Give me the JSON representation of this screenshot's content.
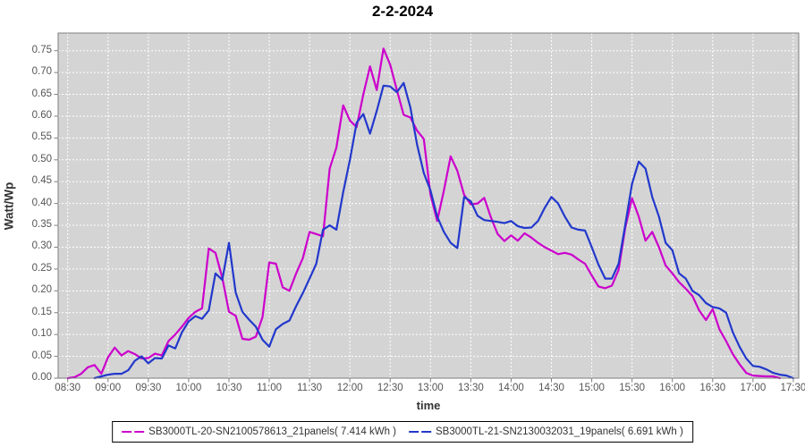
{
  "title": "2-2-2024",
  "y_axis": {
    "label": "Watt/Wp",
    "ticks": [
      "0.00",
      "0.05",
      "0.10",
      "0.15",
      "0.20",
      "0.25",
      "0.30",
      "0.35",
      "0.40",
      "0.45",
      "0.50",
      "0.55",
      "0.60",
      "0.65",
      "0.70",
      "0.75"
    ]
  },
  "x_axis": {
    "label": "time",
    "ticks": [
      "08:30",
      "09:00",
      "09:30",
      "10:00",
      "10:30",
      "11:00",
      "11:30",
      "12:00",
      "12:30",
      "13:00",
      "13:30",
      "14:00",
      "14:30",
      "15:00",
      "15:30",
      "16:00",
      "16:30",
      "17:00",
      "17:30"
    ]
  },
  "legend": {
    "items": [
      {
        "label": "SB3000TL-20-SN2100578613_21panels( 7.414 kWh )",
        "color": "#cc00cc"
      },
      {
        "label": "SB3000TL-21-SN2130032031_19panels( 6.691 kWh )",
        "color": "#2238cc"
      }
    ]
  },
  "colors": {
    "plot_background": "#d4d4d4",
    "grid": "#ffffff",
    "plot_border": "#7e7e7e",
    "tick_mark": "#808080",
    "series1": "#cc00cc",
    "series2": "#2238cc"
  },
  "chart_data": {
    "type": "line",
    "title": "2-2-2024",
    "xlabel": "time",
    "ylabel": "Watt/Wp",
    "ylim": [
      0,
      0.79
    ],
    "y_tick_step": 0.05,
    "x_tick_interval_minutes": 30,
    "grid": true,
    "legend_position": "bottom",
    "x": [
      "08:30",
      "08:35",
      "08:40",
      "08:45",
      "08:50",
      "08:55",
      "09:00",
      "09:05",
      "09:10",
      "09:15",
      "09:20",
      "09:25",
      "09:30",
      "09:35",
      "09:40",
      "09:45",
      "09:50",
      "09:55",
      "10:00",
      "10:05",
      "10:10",
      "10:15",
      "10:20",
      "10:25",
      "10:30",
      "10:35",
      "10:40",
      "10:45",
      "10:50",
      "10:55",
      "11:00",
      "11:05",
      "11:10",
      "11:15",
      "11:20",
      "11:25",
      "11:30",
      "11:35",
      "11:40",
      "11:45",
      "11:50",
      "11:55",
      "12:00",
      "12:05",
      "12:10",
      "12:15",
      "12:20",
      "12:25",
      "12:30",
      "12:35",
      "12:40",
      "12:45",
      "12:50",
      "12:55",
      "13:00",
      "13:05",
      "13:10",
      "13:15",
      "13:20",
      "13:25",
      "13:30",
      "13:35",
      "13:40",
      "13:45",
      "13:50",
      "13:55",
      "14:00",
      "14:05",
      "14:10",
      "14:15",
      "14:20",
      "14:25",
      "14:30",
      "14:35",
      "14:40",
      "14:45",
      "14:50",
      "14:55",
      "15:00",
      "15:05",
      "15:10",
      "15:15",
      "15:20",
      "15:25",
      "15:30",
      "15:35",
      "15:40",
      "15:45",
      "15:50",
      "15:55",
      "16:00",
      "16:05",
      "16:10",
      "16:15",
      "16:20",
      "16:25",
      "16:30",
      "16:35",
      "16:40",
      "16:45",
      "16:50",
      "16:55",
      "17:00",
      "17:05",
      "17:10",
      "17:15",
      "17:20",
      "17:25",
      "17:30"
    ],
    "series": [
      {
        "name": "SB3000TL-20-SN2100578613_21panels( 7.414 kWh )",
        "color": "#cc00cc",
        "values": [
          0.0,
          0.002,
          0.01,
          0.025,
          0.03,
          0.01,
          0.048,
          0.07,
          0.052,
          0.062,
          0.055,
          0.045,
          0.046,
          0.056,
          0.052,
          0.085,
          0.1,
          0.118,
          0.138,
          0.152,
          0.16,
          0.297,
          0.287,
          0.23,
          0.152,
          0.143,
          0.09,
          0.088,
          0.095,
          0.14,
          0.265,
          0.262,
          0.208,
          0.2,
          0.24,
          0.275,
          0.335,
          0.33,
          0.325,
          0.48,
          0.528,
          0.625,
          0.59,
          0.575,
          0.65,
          0.714,
          0.66,
          0.755,
          0.718,
          0.66,
          0.603,
          0.597,
          0.567,
          0.548,
          0.42,
          0.36,
          0.43,
          0.508,
          0.475,
          0.42,
          0.398,
          0.4,
          0.413,
          0.368,
          0.33,
          0.314,
          0.327,
          0.315,
          0.332,
          0.322,
          0.31,
          0.3,
          0.292,
          0.284,
          0.287,
          0.283,
          0.272,
          0.262,
          0.235,
          0.21,
          0.206,
          0.212,
          0.248,
          0.345,
          0.412,
          0.37,
          0.315,
          0.335,
          0.3,
          0.258,
          0.24,
          0.22,
          0.205,
          0.188,
          0.155,
          0.133,
          0.158,
          0.112,
          0.085,
          0.055,
          0.032,
          0.012,
          0.006,
          0.005,
          0.004,
          0.004,
          0.0,
          null,
          null
        ]
      },
      {
        "name": "SB3000TL-21-SN2130032031_19panels( 6.691 kWh )",
        "color": "#2238cc",
        "values": [
          null,
          null,
          null,
          null,
          0.0,
          0.004,
          0.008,
          0.01,
          0.01,
          0.018,
          0.04,
          0.05,
          0.034,
          0.046,
          0.045,
          0.075,
          0.068,
          0.105,
          0.13,
          0.142,
          0.136,
          0.155,
          0.24,
          0.225,
          0.31,
          0.196,
          0.152,
          0.134,
          0.118,
          0.088,
          0.072,
          0.112,
          0.124,
          0.132,
          0.165,
          0.195,
          0.228,
          0.262,
          0.34,
          0.35,
          0.34,
          0.426,
          0.5,
          0.585,
          0.605,
          0.56,
          0.612,
          0.67,
          0.668,
          0.655,
          0.676,
          0.62,
          0.535,
          0.47,
          0.43,
          0.37,
          0.335,
          0.31,
          0.298,
          0.415,
          0.405,
          0.372,
          0.362,
          0.36,
          0.358,
          0.355,
          0.36,
          0.348,
          0.344,
          0.345,
          0.36,
          0.39,
          0.415,
          0.4,
          0.37,
          0.345,
          0.34,
          0.338,
          0.3,
          0.26,
          0.228,
          0.228,
          0.262,
          0.352,
          0.445,
          0.496,
          0.48,
          0.415,
          0.37,
          0.31,
          0.293,
          0.24,
          0.228,
          0.2,
          0.19,
          0.172,
          0.163,
          0.16,
          0.15,
          0.105,
          0.072,
          0.045,
          0.028,
          0.026,
          0.02,
          0.012,
          0.008,
          0.006,
          0.0
        ]
      }
    ]
  }
}
